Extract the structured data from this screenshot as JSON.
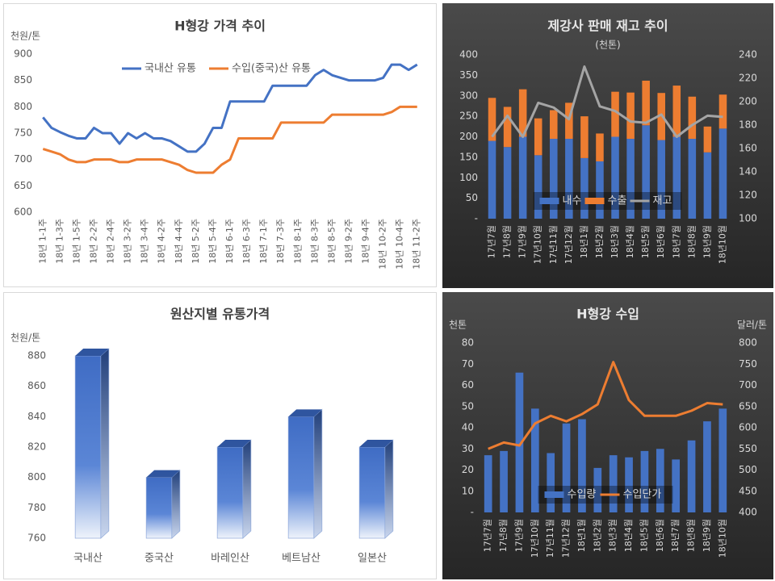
{
  "chart_data": [
    {
      "type": "line",
      "title": "H형강 가격 추이",
      "y_label": "천원/톤",
      "categories": [
        "18년 1-1주",
        null,
        "18년 1-3주",
        null,
        "18년 1-5주",
        null,
        "18년 2-2주",
        null,
        "18년 2-4주",
        null,
        "18년 3-2주",
        null,
        "18년 3-4주",
        null,
        "18년 4-2주",
        null,
        "18년 4-4주",
        null,
        "18년 5-2주",
        null,
        "18년 5-4주",
        null,
        "18년 6-1주",
        null,
        "18년 6-3주",
        null,
        "18년 7-1주",
        null,
        "18년 7-3주",
        null,
        "18년 8-1주",
        null,
        "18년 8-3주",
        null,
        "18년 8-5주",
        null,
        "18년 9-2주",
        null,
        "18년 9-4주",
        null,
        "18년 10-2주",
        null,
        "18년 10-4주",
        null,
        "18년 11-2주"
      ],
      "series": [
        {
          "name": "국내산 유통",
          "color": "#4472c4",
          "values": [
            780,
            760,
            752,
            745,
            740,
            740,
            760,
            750,
            750,
            730,
            750,
            740,
            750,
            740,
            740,
            735,
            725,
            715,
            715,
            730,
            760,
            760,
            810,
            810,
            810,
            810,
            810,
            840,
            840,
            840,
            840,
            840,
            860,
            870,
            860,
            855,
            850,
            850,
            850,
            850,
            855,
            880,
            880,
            870,
            880
          ]
        },
        {
          "name": "수입(중국)산 유통",
          "color": "#ed7d31",
          "values": [
            720,
            715,
            710,
            700,
            695,
            695,
            700,
            700,
            700,
            695,
            695,
            700,
            700,
            700,
            700,
            695,
            690,
            680,
            675,
            675,
            675,
            690,
            700,
            740,
            740,
            740,
            740,
            740,
            770,
            770,
            770,
            770,
            770,
            770,
            785,
            785,
            785,
            785,
            785,
            785,
            785,
            790,
            800,
            800,
            800
          ]
        }
      ],
      "ylim": [
        600,
        900
      ],
      "yticks": [
        600,
        650,
        700,
        750,
        800,
        850,
        900
      ],
      "legend": "top"
    },
    {
      "type": "bar",
      "title": "제강사 판매 재고 추이",
      "subtitle": "(천톤)",
      "stacked": true,
      "categories": [
        "17년7월",
        "17년8월",
        "17년9월",
        "17년10월",
        "17년11월",
        "17년12월",
        "18년1월",
        "18년2월",
        "18년3월",
        "18년4월",
        "18년5월",
        "18년6월",
        "18년7월",
        "18년8월",
        "18년9월",
        "18년10월"
      ],
      "series": [
        {
          "name": "내수",
          "color": "#4472c4",
          "values": [
            190,
            175,
            200,
            155,
            195,
            195,
            148,
            140,
            200,
            195,
            228,
            192,
            200,
            195,
            162,
            220
          ]
        },
        {
          "name": "수출",
          "color": "#ed7d31",
          "values": [
            105,
            98,
            116,
            90,
            70,
            88,
            102,
            68,
            110,
            113,
            109,
            115,
            125,
            103,
            63,
            83
          ]
        },
        {
          "name": "재고",
          "color": "#a5a5a5",
          "type": "line",
          "axis": "y2",
          "values": [
            170,
            188,
            170,
            199,
            195,
            185,
            230,
            196,
            192,
            183,
            182,
            189,
            170,
            180,
            188,
            187
          ]
        }
      ],
      "ylim": [
        0,
        400
      ],
      "yticks": [
        {
          "value": 0,
          "label": "-"
        },
        50,
        100,
        150,
        200,
        250,
        300,
        350,
        400
      ],
      "y2lim": [
        100,
        240
      ],
      "y2ticks": [
        100,
        120,
        140,
        160,
        180,
        200,
        220,
        240
      ],
      "legend": "bottom"
    },
    {
      "type": "bar",
      "title": "원산지별 유통가격",
      "y_label": "천원/톤",
      "bar_style": "3d",
      "categories": [
        "국내산",
        "중국산",
        "바레인산",
        "베트남산",
        "일본산"
      ],
      "values": [
        880,
        800,
        820,
        840,
        820
      ],
      "color": "#4472c4",
      "ylim": [
        760,
        880
      ],
      "yticks": [
        760,
        780,
        800,
        820,
        840,
        860,
        880
      ]
    },
    {
      "type": "bar",
      "title": "H형강 수입",
      "y_label": "천톤",
      "y2_label": "달러/톤",
      "categories": [
        "17년7월",
        "17년8월",
        "17년9월",
        "17년10월",
        "17년11월",
        "17년12월",
        "18년1월",
        "18년2월",
        "18년3월",
        "18년4월",
        "18년5월",
        "18년6월",
        "18년7월",
        "18년8월",
        "18년9월",
        "18년10월"
      ],
      "series": [
        {
          "name": "수입량",
          "color": "#4472c4",
          "values": [
            27,
            29,
            66,
            49,
            28,
            42,
            44,
            21,
            27,
            26,
            29,
            30,
            25,
            34,
            43,
            49
          ]
        },
        {
          "name": "수입단가",
          "color": "#ed7d31",
          "type": "line",
          "axis": "y2",
          "values": [
            550,
            565,
            558,
            610,
            628,
            615,
            632,
            655,
            755,
            665,
            628,
            628,
            628,
            640,
            658,
            655
          ]
        }
      ],
      "ylim": [
        0,
        80
      ],
      "yticks": [
        {
          "value": 0,
          "label": "-"
        },
        10,
        20,
        30,
        40,
        50,
        60,
        70,
        80
      ],
      "y2lim": [
        400,
        800
      ],
      "y2ticks": [
        400,
        450,
        500,
        550,
        600,
        650,
        700,
        750,
        800
      ],
      "legend": "bottom"
    }
  ]
}
